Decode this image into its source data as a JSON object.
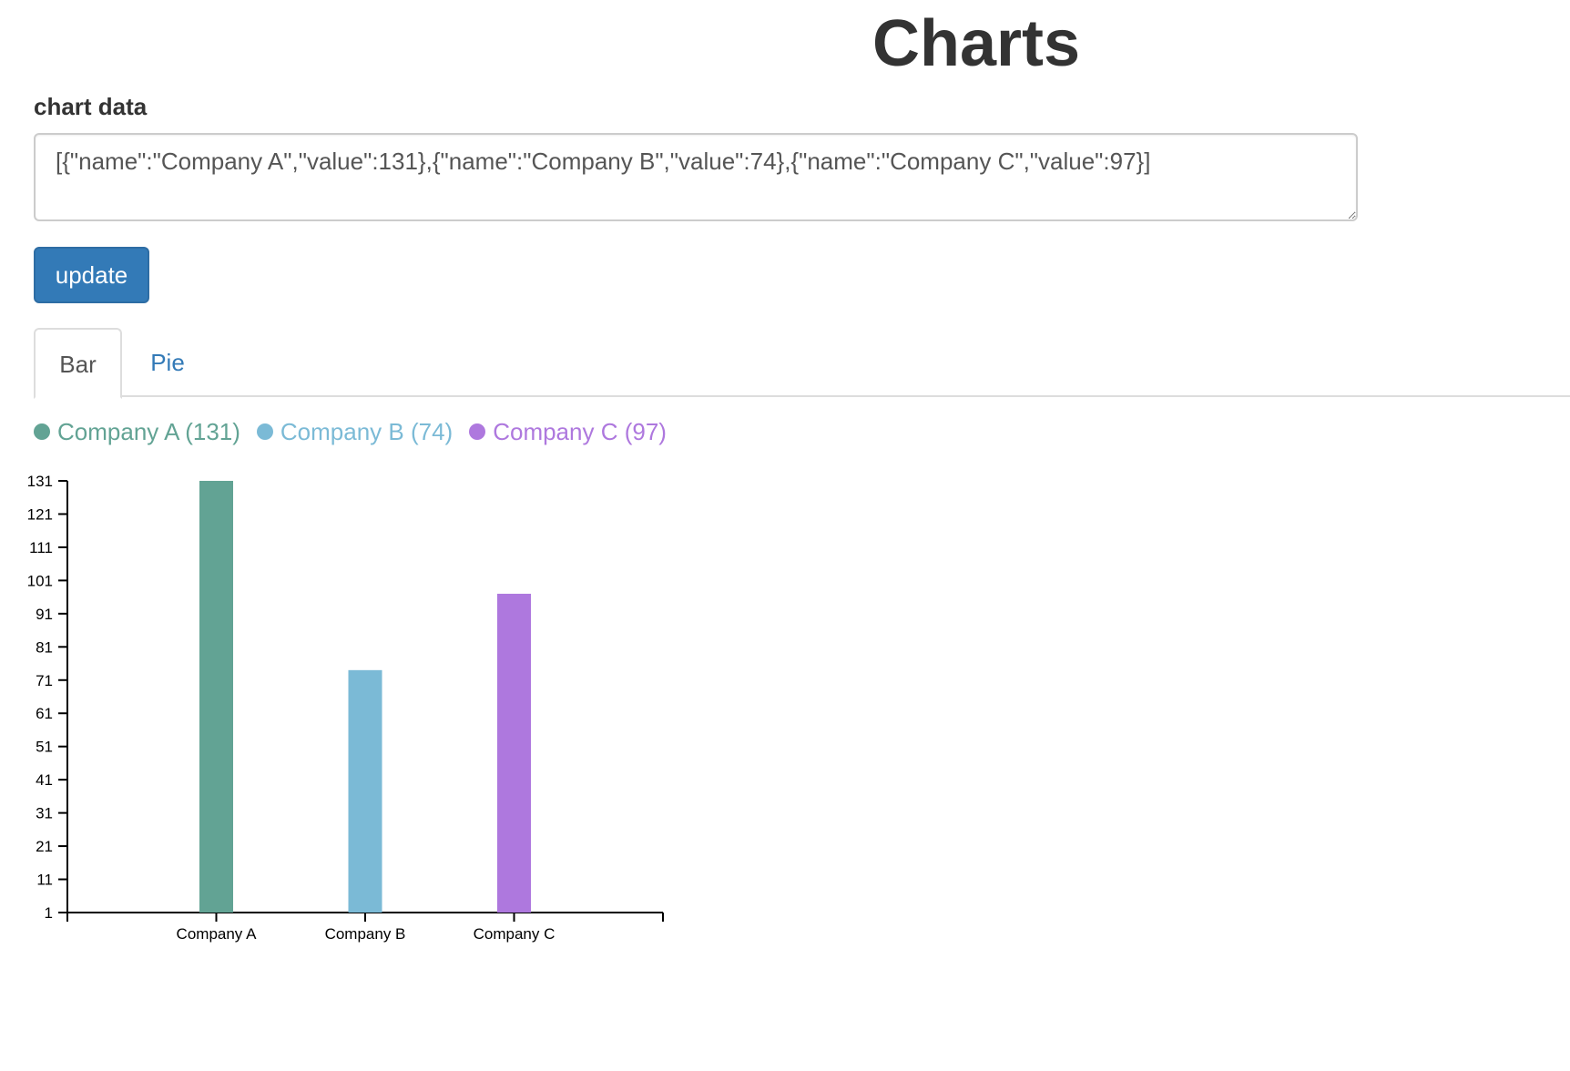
{
  "page": {
    "title": "Charts"
  },
  "form": {
    "label": "chart data",
    "textarea_value": "[{\"name\":\"Company A\",\"value\":131},{\"name\":\"Company B\",\"value\":74},{\"name\":\"Company C\",\"value\":97}]",
    "update_label": "update"
  },
  "tabs": [
    {
      "label": "Bar",
      "active": true
    },
    {
      "label": "Pie",
      "active": false
    }
  ],
  "colors": {
    "accent": "#337ab7",
    "company_a": "#62a394",
    "company_b": "#7bbad6",
    "company_c": "#ae78de"
  },
  "legend": [
    {
      "label": "Company A (131)",
      "color": "#62a394"
    },
    {
      "label": "Company B (74)",
      "color": "#7bbad6"
    },
    {
      "label": "Company C (97)",
      "color": "#ae78de"
    }
  ],
  "chart_data": {
    "type": "bar",
    "categories": [
      "Company A",
      "Company B",
      "Company C"
    ],
    "values": [
      131,
      74,
      97
    ],
    "colors": [
      "#62a394",
      "#7bbad6",
      "#ae78de"
    ],
    "title": "",
    "xlabel": "",
    "ylabel": "",
    "ylim": [
      1,
      131
    ],
    "yticks": [
      131,
      121,
      111,
      101,
      91,
      81,
      71,
      61,
      51,
      41,
      31,
      21,
      11,
      1
    ],
    "grid": false,
    "legend_position": "top-left"
  }
}
